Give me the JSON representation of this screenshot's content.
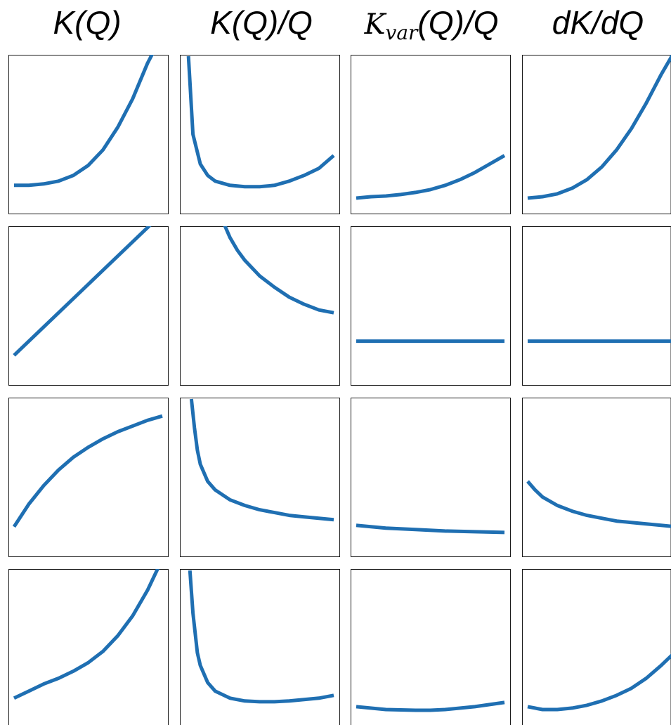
{
  "column_headers": {
    "c1": "K(Q)",
    "c2": "K(Q)/Q",
    "c3_main": "K",
    "c3_sub": "var",
    "c3_rest": "(Q)/Q",
    "c4": "dK/dQ"
  },
  "colors": {
    "line": "#1f6fb2",
    "frame": "#1a1a1a",
    "background": "#ffffff"
  },
  "chart_data": {
    "type": "line",
    "axes_visible": false,
    "grid": false,
    "panels": [
      {
        "row": 1,
        "col": 1,
        "x": [
          0,
          0.1,
          0.2,
          0.3,
          0.4,
          0.5,
          0.6,
          0.7,
          0.8,
          0.9,
          1.0
        ],
        "y": [
          0.09,
          0.09,
          0.1,
          0.12,
          0.16,
          0.23,
          0.34,
          0.5,
          0.7,
          0.95,
          1.15
        ]
      },
      {
        "row": 1,
        "col": 2,
        "x": [
          0.02,
          0.05,
          0.1,
          0.15,
          0.2,
          0.3,
          0.4,
          0.5,
          0.6,
          0.7,
          0.8,
          0.9,
          1.0
        ],
        "y": [
          1.0,
          0.45,
          0.24,
          0.16,
          0.12,
          0.09,
          0.08,
          0.08,
          0.09,
          0.12,
          0.16,
          0.21,
          0.3
        ]
      },
      {
        "row": 1,
        "col": 3,
        "x": [
          0,
          0.1,
          0.2,
          0.3,
          0.4,
          0.5,
          0.6,
          0.7,
          0.8,
          0.9,
          1.0
        ],
        "y": [
          0.0,
          0.01,
          0.015,
          0.025,
          0.04,
          0.06,
          0.09,
          0.13,
          0.18,
          0.24,
          0.3
        ]
      },
      {
        "row": 1,
        "col": 4,
        "x": [
          0,
          0.1,
          0.2,
          0.3,
          0.4,
          0.5,
          0.6,
          0.7,
          0.8,
          0.9,
          1.0
        ],
        "y": [
          0.0,
          0.01,
          0.03,
          0.07,
          0.13,
          0.22,
          0.34,
          0.49,
          0.67,
          0.87,
          1.05
        ]
      },
      {
        "row": 2,
        "col": 1,
        "x": [
          0,
          1.0
        ],
        "y": [
          0.1,
          1.1
        ]
      },
      {
        "row": 2,
        "col": 2,
        "x": [
          0.25,
          0.3,
          0.35,
          0.4,
          0.5,
          0.6,
          0.7,
          0.8,
          0.9,
          1.0
        ],
        "y": [
          1.05,
          0.93,
          0.84,
          0.77,
          0.66,
          0.58,
          0.51,
          0.46,
          0.42,
          0.4
        ]
      },
      {
        "row": 2,
        "col": 3,
        "x": [
          0,
          1.0
        ],
        "y": [
          0.2,
          0.2
        ]
      },
      {
        "row": 2,
        "col": 4,
        "x": [
          0,
          1.0
        ],
        "y": [
          0.2,
          0.2
        ]
      },
      {
        "row": 3,
        "col": 1,
        "x": [
          0,
          0.1,
          0.2,
          0.3,
          0.4,
          0.5,
          0.6,
          0.7,
          0.8,
          0.9,
          1.0
        ],
        "y": [
          0.1,
          0.26,
          0.39,
          0.5,
          0.59,
          0.66,
          0.72,
          0.77,
          0.81,
          0.85,
          0.88
        ]
      },
      {
        "row": 3,
        "col": 2,
        "x": [
          0.04,
          0.06,
          0.08,
          0.1,
          0.15,
          0.2,
          0.3,
          0.4,
          0.5,
          0.6,
          0.7,
          0.8,
          0.9,
          1.0
        ],
        "y": [
          1.0,
          0.8,
          0.64,
          0.54,
          0.42,
          0.36,
          0.29,
          0.25,
          0.22,
          0.2,
          0.18,
          0.17,
          0.16,
          0.15
        ]
      },
      {
        "row": 3,
        "col": 3,
        "x": [
          0,
          0.2,
          0.4,
          0.6,
          0.8,
          1.0
        ],
        "y": [
          0.11,
          0.09,
          0.08,
          0.07,
          0.065,
          0.06
        ]
      },
      {
        "row": 3,
        "col": 4,
        "x": [
          0,
          0.05,
          0.1,
          0.2,
          0.3,
          0.4,
          0.5,
          0.6,
          0.7,
          0.8,
          0.9,
          1.0
        ],
        "y": [
          0.42,
          0.36,
          0.31,
          0.25,
          0.21,
          0.18,
          0.16,
          0.14,
          0.13,
          0.12,
          0.11,
          0.1
        ]
      },
      {
        "row": 4,
        "col": 1,
        "x": [
          0,
          0.1,
          0.2,
          0.3,
          0.4,
          0.5,
          0.6,
          0.7,
          0.8,
          0.9,
          1.0
        ],
        "y": [
          0.1,
          0.15,
          0.2,
          0.24,
          0.29,
          0.35,
          0.43,
          0.54,
          0.68,
          0.86,
          1.08
        ]
      },
      {
        "row": 4,
        "col": 2,
        "x": [
          0.03,
          0.05,
          0.08,
          0.1,
          0.15,
          0.2,
          0.3,
          0.4,
          0.5,
          0.6,
          0.7,
          0.8,
          0.9,
          1.0
        ],
        "y": [
          1.0,
          0.7,
          0.42,
          0.33,
          0.21,
          0.15,
          0.1,
          0.08,
          0.075,
          0.075,
          0.08,
          0.09,
          0.1,
          0.12
        ]
      },
      {
        "row": 4,
        "col": 3,
        "x": [
          0,
          0.2,
          0.4,
          0.5,
          0.6,
          0.8,
          1.0
        ],
        "y": [
          0.04,
          0.02,
          0.015,
          0.015,
          0.02,
          0.04,
          0.07
        ]
      },
      {
        "row": 4,
        "col": 4,
        "x": [
          0,
          0.1,
          0.2,
          0.3,
          0.4,
          0.5,
          0.6,
          0.7,
          0.8,
          0.9,
          1.0
        ],
        "y": [
          0.04,
          0.02,
          0.02,
          0.03,
          0.05,
          0.08,
          0.12,
          0.17,
          0.24,
          0.33,
          0.43
        ]
      }
    ]
  }
}
